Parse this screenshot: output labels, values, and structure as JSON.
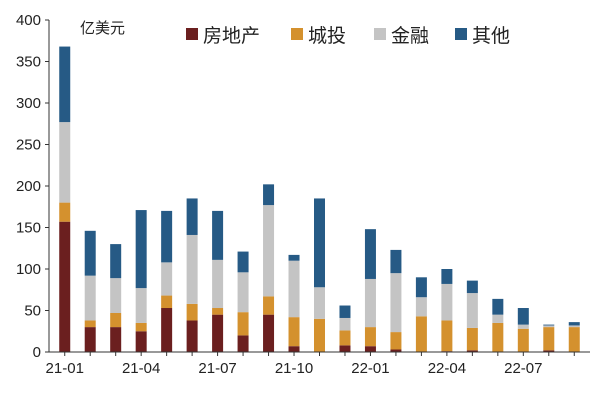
{
  "chart_data": {
    "type": "bar",
    "stacked": true,
    "unit": "亿美元",
    "ylim": [
      0,
      400
    ],
    "yticks": [
      0,
      50,
      100,
      150,
      200,
      250,
      300,
      350,
      400
    ],
    "grid": false,
    "legend_position": "top",
    "categories": [
      "21-01",
      "21-02",
      "21-03",
      "21-04",
      "21-05",
      "21-06",
      "21-07",
      "21-08",
      "21-09",
      "21-10",
      "21-11",
      "21-12",
      "22-01",
      "22-02",
      "22-03",
      "22-04",
      "22-05",
      "22-06",
      "22-07",
      "22-08",
      "22-09"
    ],
    "x_tick_labels": [
      "21-01",
      "",
      "",
      "21-04",
      "",
      "",
      "21-07",
      "",
      "",
      "21-10",
      "",
      "",
      "22-01",
      "",
      "",
      "22-04",
      "",
      "",
      "22-07",
      "",
      ""
    ],
    "series": [
      {
        "name": "房地产",
        "color": "#6b1f1f",
        "values": [
          157,
          30,
          30,
          25,
          53,
          38,
          45,
          20,
          45,
          7,
          0,
          8,
          7,
          3,
          0,
          1,
          2,
          0,
          0,
          2,
          0
        ]
      },
      {
        "name": "城投",
        "color": "#d4912e",
        "values": [
          23,
          8,
          17,
          10,
          15,
          20,
          8,
          28,
          22,
          35,
          40,
          18,
          23,
          21,
          43,
          37,
          27,
          35,
          28,
          28,
          30
        ]
      },
      {
        "name": "金融",
        "color": "#c4c4c4",
        "values": [
          97,
          54,
          42,
          42,
          40,
          83,
          58,
          48,
          110,
          68,
          38,
          15,
          58,
          71,
          23,
          44,
          42,
          10,
          5,
          2,
          2
        ]
      },
      {
        "name": "其他",
        "color": "#265a85",
        "values": [
          91,
          54,
          41,
          94,
          62,
          44,
          59,
          25,
          25,
          7,
          107,
          15,
          60,
          28,
          24,
          18,
          15,
          19,
          20,
          1,
          4
        ]
      }
    ]
  }
}
